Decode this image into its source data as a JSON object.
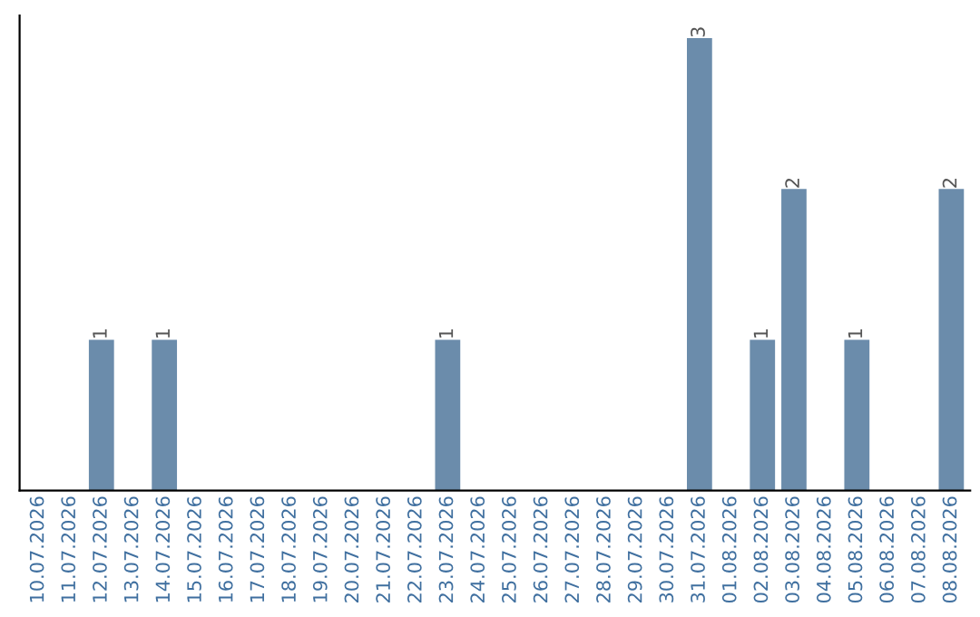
{
  "chart_data": {
    "type": "bar",
    "categories": [
      "10.07.2026",
      "11.07.2026",
      "12.07.2026",
      "13.07.2026",
      "14.07.2026",
      "15.07.2026",
      "16.07.2026",
      "17.07.2026",
      "18.07.2026",
      "19.07.2026",
      "20.07.2026",
      "21.07.2026",
      "22.07.2026",
      "23.07.2026",
      "24.07.2026",
      "25.07.2026",
      "26.07.2026",
      "27.07.2026",
      "28.07.2026",
      "29.07.2026",
      "30.07.2026",
      "31.07.2026",
      "01.08.2026",
      "02.08.2026",
      "03.08.2026",
      "04.08.2026",
      "05.08.2026",
      "06.08.2026",
      "07.08.2026",
      "08.08.2026"
    ],
    "values": [
      0,
      0,
      1,
      0,
      1,
      0,
      0,
      0,
      0,
      0,
      0,
      0,
      0,
      1,
      0,
      0,
      0,
      0,
      0,
      0,
      0,
      3,
      0,
      1,
      2,
      0,
      1,
      0,
      0,
      2
    ],
    "value_labels": [
      null,
      null,
      "1",
      null,
      "1",
      null,
      null,
      null,
      null,
      null,
      null,
      null,
      null,
      "1",
      null,
      null,
      null,
      null,
      null,
      null,
      null,
      "3",
      null,
      "1",
      "2",
      null,
      "1",
      null,
      null,
      "2"
    ],
    "color": "#6b8cab",
    "tick_labels": "x",
    "grid": false,
    "legend": false
  }
}
